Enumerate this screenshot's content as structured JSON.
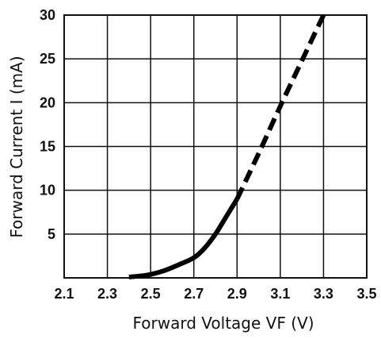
{
  "chart_data": {
    "type": "line",
    "title": "",
    "xlabel": "Forward Voltage VF (V)",
    "ylabel": "Forward Current I (mA)",
    "xlim": [
      2.1,
      3.5
    ],
    "ylim": [
      0,
      30
    ],
    "grid": true,
    "x_ticks": [
      "2.1",
      "2.3",
      "2.5",
      "2.7",
      "2.9",
      "3.1",
      "3.3",
      "3.5"
    ],
    "y_ticks": [
      "30",
      "25",
      "20",
      "15",
      "10",
      "5"
    ],
    "series": [
      {
        "line_style": "solid",
        "color": "#000000",
        "points": [
          {
            "x": 2.4,
            "y": 0.1
          },
          {
            "x": 2.48,
            "y": 0.3
          },
          {
            "x": 2.56,
            "y": 0.8
          },
          {
            "x": 2.63,
            "y": 1.5
          },
          {
            "x": 2.7,
            "y": 2.3
          },
          {
            "x": 2.75,
            "y": 3.4
          },
          {
            "x": 2.8,
            "y": 5.0
          },
          {
            "x": 2.85,
            "y": 7.0
          },
          {
            "x": 2.9,
            "y": 9.0
          }
        ]
      },
      {
        "line_style": "dashed",
        "color": "#000000",
        "points": [
          {
            "x": 2.9,
            "y": 9.0
          },
          {
            "x": 3.0,
            "y": 14.2
          },
          {
            "x": 3.1,
            "y": 19.6
          },
          {
            "x": 3.2,
            "y": 24.8
          },
          {
            "x": 3.3,
            "y": 30.0
          }
        ]
      }
    ]
  }
}
